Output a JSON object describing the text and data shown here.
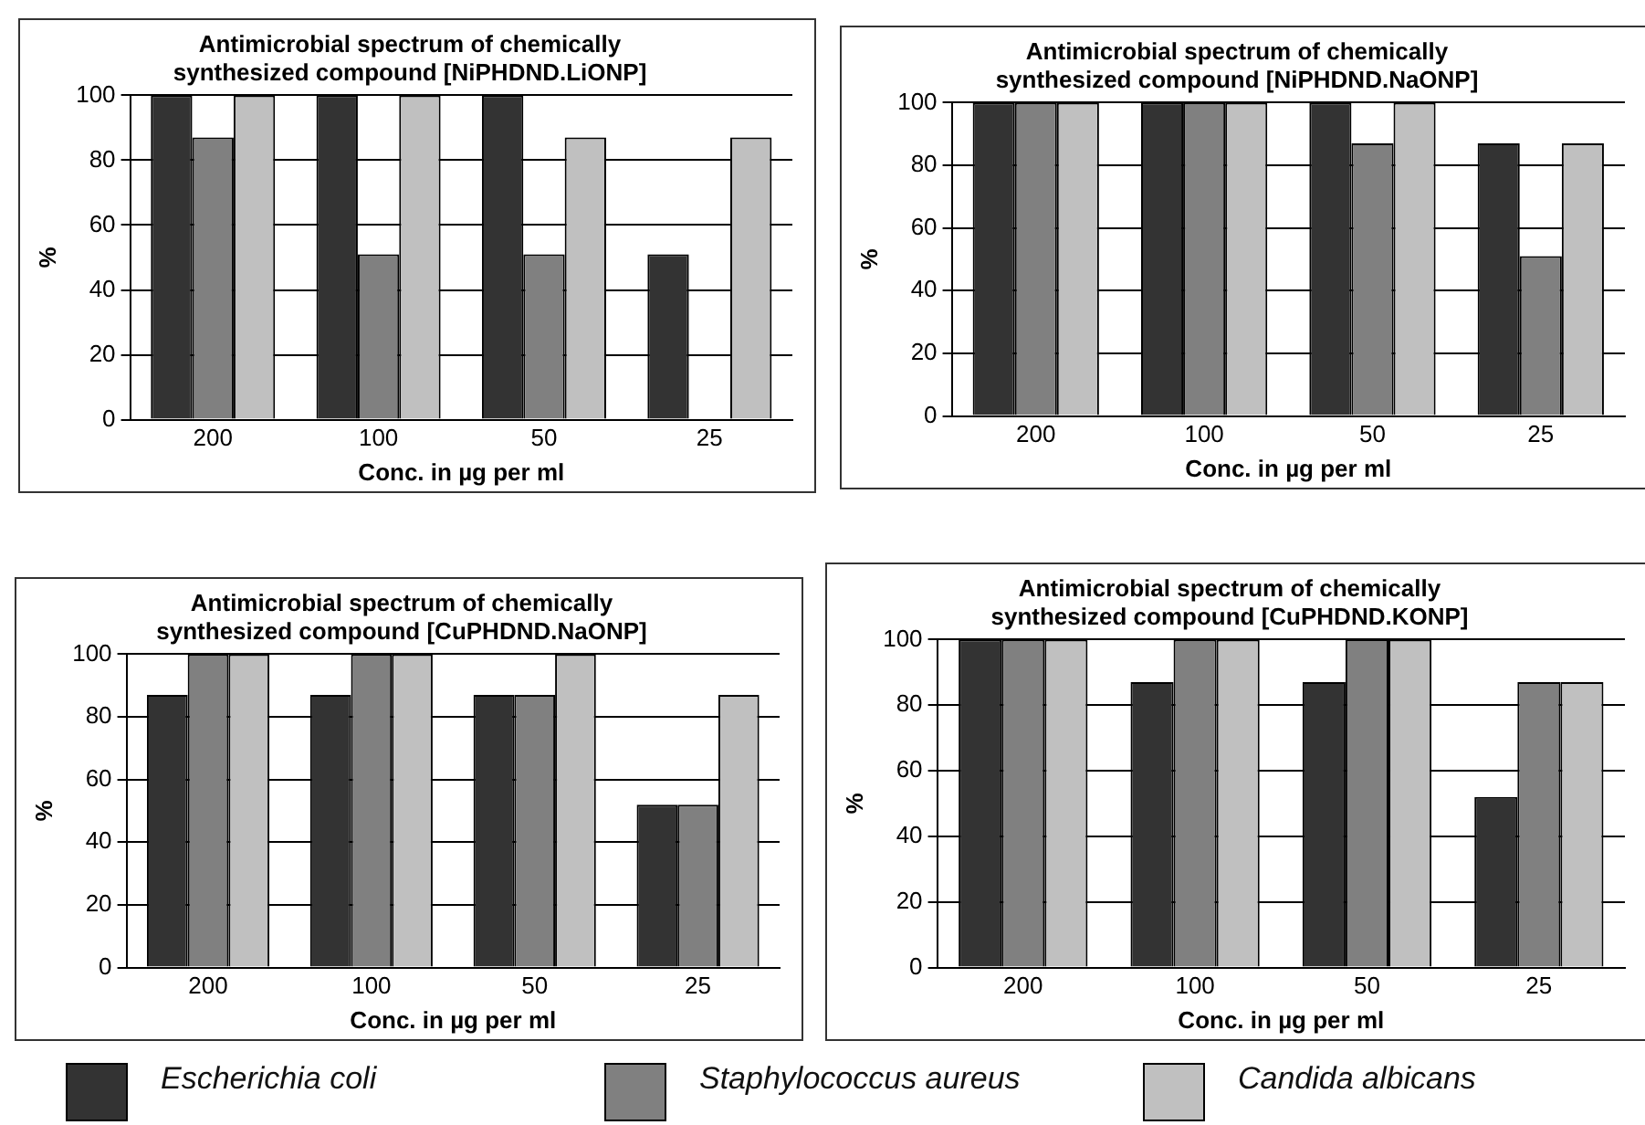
{
  "chart_data": [
    {
      "type": "bar",
      "title": [
        "Antimicrobial spectrum of chemically",
        "synthesized compound [NiPHDND.LiONP]"
      ],
      "xlabel": "Conc. in µg per ml",
      "ylabel": "%",
      "categories": [
        "200",
        "100",
        "50",
        "25"
      ],
      "ylim": [
        0,
        100
      ],
      "yticks": [
        0,
        20,
        40,
        60,
        80,
        100
      ],
      "grid": "y",
      "legend": "bottom",
      "series": [
        {
          "name": "Escherichia coli",
          "color": "#333333",
          "values": [
            100,
            100,
            100,
            51
          ]
        },
        {
          "name": "Staphylococcus aureus",
          "color": "#808080",
          "values": [
            87,
            51,
            51,
            0
          ]
        },
        {
          "name": "Candida albicans",
          "color": "#c0c0c0",
          "values": [
            100,
            100,
            87,
            87
          ]
        }
      ]
    },
    {
      "type": "bar",
      "title": [
        "Antimicrobial spectrum of chemically",
        "synthesized compound [NiPHDND.NaONP]"
      ],
      "xlabel": "Conc. in µg per ml",
      "ylabel": "%",
      "categories": [
        "200",
        "100",
        "50",
        "25"
      ],
      "ylim": [
        0,
        100
      ],
      "yticks": [
        0,
        20,
        40,
        60,
        80,
        100
      ],
      "grid": "y",
      "series": [
        {
          "color": "#333333",
          "values": [
            100,
            100,
            100,
            87
          ]
        },
        {
          "color": "#808080",
          "values": [
            100,
            100,
            87,
            51
          ]
        },
        {
          "color": "#c0c0c0",
          "values": [
            100,
            100,
            100,
            87
          ]
        }
      ]
    },
    {
      "type": "bar",
      "title": [
        "Antimicrobial spectrum of chemically",
        "synthesized compound [CuPHDND.NaONP]"
      ],
      "xlabel": "Conc. in µg per ml",
      "ylabel": "%",
      "categories": [
        "200",
        "100",
        "50",
        "25"
      ],
      "ylim": [
        0,
        100
      ],
      "yticks": [
        0,
        20,
        40,
        60,
        80,
        100
      ],
      "grid": "y",
      "series": [
        {
          "color": "#333333",
          "values": [
            87,
            87,
            87,
            52
          ]
        },
        {
          "color": "#808080",
          "values": [
            100,
            100,
            87,
            52
          ]
        },
        {
          "color": "#c0c0c0",
          "values": [
            100,
            100,
            100,
            87
          ]
        }
      ]
    },
    {
      "type": "bar",
      "title": [
        "Antimicrobial spectrum of chemically",
        "synthesized compound [CuPHDND.KONP]"
      ],
      "xlabel": "Conc. in µg per ml",
      "ylabel": "%",
      "categories": [
        "200",
        "100",
        "50",
        "25"
      ],
      "ylim": [
        0,
        100
      ],
      "yticks": [
        0,
        20,
        40,
        60,
        80,
        100
      ],
      "grid": "y",
      "series": [
        {
          "color": "#333333",
          "values": [
            100,
            87,
            87,
            52
          ]
        },
        {
          "color": "#808080",
          "values": [
            100,
            100,
            100,
            87
          ]
        },
        {
          "color": "#c0c0c0",
          "values": [
            100,
            100,
            100,
            87
          ]
        }
      ]
    }
  ]
}
